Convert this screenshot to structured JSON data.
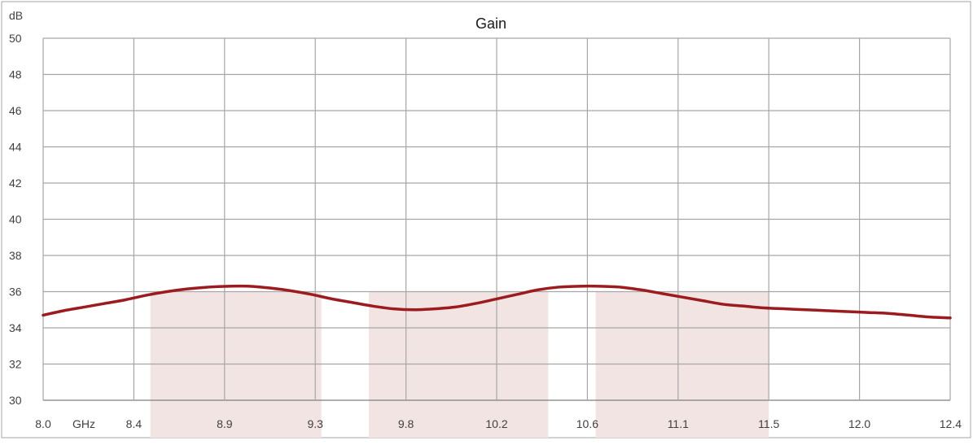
{
  "chart_data": {
    "type": "line",
    "title": "Gain",
    "ylabel": "dB",
    "x_unit_label": "GHz",
    "ylim": [
      30,
      50
    ],
    "y_ticks": [
      "30",
      "32",
      "34",
      "36",
      "38",
      "40",
      "42",
      "44",
      "46",
      "48",
      "50"
    ],
    "x_ticks": [
      "8.0",
      "8.4",
      "8.9",
      "9.3",
      "9.8",
      "10.2",
      "10.6",
      "11.1",
      "11.5",
      "12.0",
      "12.4"
    ],
    "grid": true,
    "legend": "none",
    "colors": {
      "line": "#9b1b1e",
      "band": "#f3e4e4",
      "grid": "#a6a6a6",
      "axis": "#7f7f7f"
    },
    "bands": [
      {
        "x_start": 8.52,
        "x_end": 9.35,
        "y_top": 36
      },
      {
        "x_start": 9.58,
        "x_end": 10.45,
        "y_top": 36
      },
      {
        "x_start": 10.68,
        "x_end": 11.52,
        "y_top": 36
      }
    ],
    "series": [
      {
        "x": [
          8.0,
          8.1,
          8.2,
          8.3,
          8.4,
          8.5,
          8.6,
          8.7,
          8.8,
          8.9,
          9.0,
          9.1,
          9.2,
          9.3,
          9.4,
          9.5,
          9.6,
          9.7,
          9.8,
          9.9,
          10.0,
          10.1,
          10.2,
          10.3,
          10.4,
          10.5,
          10.6,
          10.7,
          10.8,
          10.9,
          11.0,
          11.1,
          11.2,
          11.3,
          11.4,
          11.5,
          11.6,
          11.7,
          11.8,
          11.9,
          12.0,
          12.1,
          12.2,
          12.3,
          12.4
        ],
        "values": [
          34.7,
          34.95,
          35.15,
          35.35,
          35.55,
          35.8,
          36.0,
          36.15,
          36.25,
          36.3,
          36.3,
          36.2,
          36.05,
          35.85,
          35.6,
          35.4,
          35.2,
          35.05,
          35.0,
          35.05,
          35.15,
          35.35,
          35.6,
          35.85,
          36.1,
          36.25,
          36.3,
          36.3,
          36.25,
          36.1,
          35.9,
          35.7,
          35.5,
          35.3,
          35.2,
          35.1,
          35.05,
          35.0,
          34.95,
          34.9,
          34.85,
          34.8,
          34.7,
          34.6,
          34.55
        ]
      }
    ]
  }
}
